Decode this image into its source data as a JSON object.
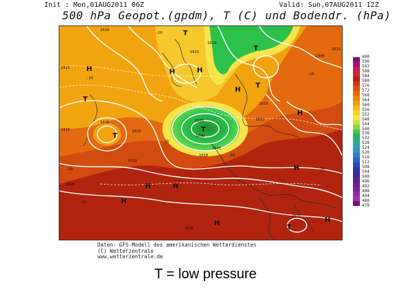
{
  "header": {
    "init": "Init : Mon,01AUG2011 06Z",
    "valid": "Valid: Sun,07AUG2011 12Z",
    "title": "500 hPa Geopot.(gpdm), T (C) und Bodendr. (hPa)"
  },
  "colors": {
    "land_hot": "#b0240f",
    "orange": "#e46a10",
    "amber": "#f2a410",
    "yellow": "#f6e44a",
    "green": "#2cc24c",
    "dark_green": "#1f8f2f"
  },
  "colorbar": {
    "labels": [
      "600",
      "596",
      "592",
      "588",
      "584",
      "580",
      "576",
      "572",
      "568",
      "564",
      "560",
      "556",
      "552",
      "548",
      "544",
      "540",
      "536",
      "532",
      "528",
      "524",
      "520",
      "516",
      "512",
      "508",
      "504",
      "500",
      "496",
      "492",
      "488",
      "484",
      "480",
      "478"
    ]
  },
  "map_labels": {
    "high": "H",
    "low": "T",
    "isobars": [
      "1015",
      "1015",
      "1020",
      "1010",
      "1020",
      "1005",
      "1000",
      "1005",
      "1010",
      "1015",
      "1020",
      "1010",
      "1015",
      "1005",
      "1010",
      "1015",
      "1020",
      "1010",
      "1015"
    ],
    "temps": [
      "-20",
      "-15",
      "-10",
      "-15",
      "-20",
      "-15",
      "-10",
      "-15"
    ]
  },
  "credits": {
    "line1": "Daten: GFS-Modell des amerikanischen Wetterdienstes",
    "line2": "(C) Wetterzentrale",
    "line3": "www.wetterzentrale.de"
  },
  "caption": "T = low pressure"
}
